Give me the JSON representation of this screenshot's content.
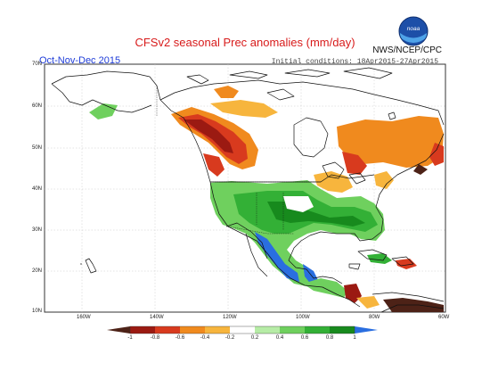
{
  "header": {
    "title": "CFSv2 seasonal Prec anomalies (mm/day)",
    "season": "Oct-Nov-Dec 2015",
    "agency": "NWS/NCEP/CPC",
    "initial_conditions": "Initial conditions: 18Apr2015-27Apr2015"
  },
  "logo": {
    "name": "noaa-logo",
    "lettering": "noaa"
  },
  "axes": {
    "lat_labels": [
      "70N",
      "60N",
      "50N",
      "40N",
      "30N",
      "20N",
      "10N"
    ],
    "lon_labels": [
      "160W",
      "140W",
      "120W",
      "100W",
      "80W",
      "60W"
    ]
  },
  "colorbar": {
    "ticks": [
      "-1",
      "-0.8",
      "-0.6",
      "-0.4",
      "-0.2",
      "0.2",
      "0.4",
      "0.6",
      "0.8",
      "1"
    ],
    "colors": [
      "#4d2217",
      "#9b1a12",
      "#d83a1e",
      "#f08a1e",
      "#f7b53d",
      "#ffffff",
      "#b6eca6",
      "#6fd05e",
      "#33b036",
      "#178a1d",
      "#2a6ee0"
    ]
  }
}
